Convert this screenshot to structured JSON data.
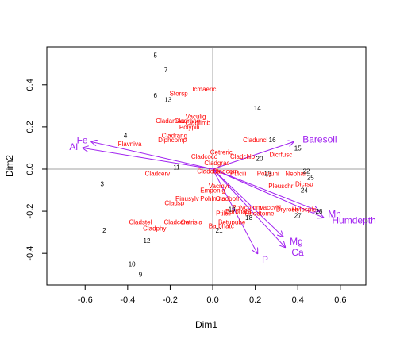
{
  "chart_data": {
    "type": "scatter",
    "xlabel": "Dim1",
    "ylabel": "Dim2",
    "xlim": [
      -0.78,
      0.72
    ],
    "ylim": [
      -0.55,
      0.58
    ],
    "x_ticks": [
      -0.6,
      -0.4,
      -0.2,
      0.0,
      0.2,
      0.4,
      0.6
    ],
    "x_tick_labels": [
      "-0.6",
      "-0.4",
      "-0.2",
      "0.0",
      "0.2",
      "0.4",
      "0.6"
    ],
    "y_ticks": [
      -0.4,
      -0.2,
      0.0,
      0.2,
      0.4
    ],
    "y_tick_labels": [
      "-0.4",
      "-0.2",
      "0.0",
      "0.2",
      "0.4"
    ],
    "reference_lines": {
      "x": 0,
      "y": 0
    },
    "colors": {
      "sites": "#000000",
      "species": "#ff0000",
      "env": "#a020f0"
    },
    "sites": [
      {
        "label": "5",
        "x": -0.27,
        "y": 0.54
      },
      {
        "label": "7",
        "x": -0.22,
        "y": 0.47
      },
      {
        "label": "6",
        "x": -0.27,
        "y": 0.35
      },
      {
        "label": "13",
        "x": -0.21,
        "y": 0.33
      },
      {
        "label": "14",
        "x": 0.21,
        "y": 0.29
      },
      {
        "label": "4",
        "x": -0.41,
        "y": 0.16
      },
      {
        "label": "16",
        "x": 0.28,
        "y": 0.14
      },
      {
        "label": "15",
        "x": 0.4,
        "y": 0.1
      },
      {
        "label": "20",
        "x": 0.22,
        "y": 0.05
      },
      {
        "label": "11",
        "x": -0.17,
        "y": 0.01
      },
      {
        "label": "22",
        "x": 0.44,
        "y": -0.01
      },
      {
        "label": "25",
        "x": 0.46,
        "y": -0.04
      },
      {
        "label": "23",
        "x": 0.26,
        "y": -0.02
      },
      {
        "label": "3",
        "x": -0.52,
        "y": -0.07
      },
      {
        "label": "24",
        "x": 0.43,
        "y": -0.1
      },
      {
        "label": "19",
        "x": 0.09,
        "y": -0.19
      },
      {
        "label": "28",
        "x": 0.5,
        "y": -0.2
      },
      {
        "label": "27",
        "x": 0.4,
        "y": -0.22
      },
      {
        "label": "18",
        "x": 0.17,
        "y": -0.23
      },
      {
        "label": "21",
        "x": 0.03,
        "y": -0.29
      },
      {
        "label": "2",
        "x": -0.51,
        "y": -0.29
      },
      {
        "label": "12",
        "x": -0.31,
        "y": -0.34
      },
      {
        "label": "10",
        "x": -0.38,
        "y": -0.45
      },
      {
        "label": "9",
        "x": -0.34,
        "y": -0.5
      }
    ],
    "species": [
      {
        "label": "Icmaeric",
        "x": -0.04,
        "y": 0.38
      },
      {
        "label": "Stersp",
        "x": -0.16,
        "y": 0.36
      },
      {
        "label": "Vaculig",
        "x": -0.08,
        "y": 0.25
      },
      {
        "label": "Cladamau",
        "x": -0.2,
        "y": 0.23
      },
      {
        "label": "Cladrang",
        "x": -0.12,
        "y": 0.23
      },
      {
        "label": "Cladfimb",
        "x": -0.07,
        "y": 0.22
      },
      {
        "label": "Polypili",
        "x": -0.11,
        "y": 0.2
      },
      {
        "label": "Cladrang",
        "x": -0.18,
        "y": 0.16
      },
      {
        "label": "Diphcomp",
        "x": -0.19,
        "y": 0.14
      },
      {
        "label": "Flavniva",
        "x": -0.39,
        "y": 0.12
      },
      {
        "label": "Cladunci",
        "x": 0.2,
        "y": 0.14
      },
      {
        "label": "Cetreric",
        "x": 0.04,
        "y": 0.08
      },
      {
        "label": "Dicrfusc",
        "x": 0.32,
        "y": 0.07
      },
      {
        "label": "Cladcocc",
        "x": -0.04,
        "y": 0.06
      },
      {
        "label": "Cladchlo",
        "x": 0.14,
        "y": 0.06
      },
      {
        "label": "Cladgrac",
        "x": 0.02,
        "y": 0.03
      },
      {
        "label": "Cladcerv",
        "x": -0.26,
        "y": -0.02
      },
      {
        "label": "Cladcris",
        "x": -0.02,
        "y": -0.01
      },
      {
        "label": "Cladcorn",
        "x": 0.06,
        "y": -0.01
      },
      {
        "label": "Ptilcili",
        "x": 0.12,
        "y": -0.02
      },
      {
        "label": "Polyjuni",
        "x": 0.26,
        "y": -0.02
      },
      {
        "label": "Nephar",
        "x": 0.39,
        "y": -0.02
      },
      {
        "label": "Pleuschr",
        "x": 0.32,
        "y": -0.08
      },
      {
        "label": "Dicrsp",
        "x": 0.43,
        "y": -0.07
      },
      {
        "label": "Vacmyr",
        "x": 0.03,
        "y": -0.08
      },
      {
        "label": "Empenig",
        "x": 0.0,
        "y": -0.1
      },
      {
        "label": "Pinusylv",
        "x": -0.12,
        "y": -0.14
      },
      {
        "label": "Pohlnuta",
        "x": 0.0,
        "y": -0.14
      },
      {
        "label": "Cladbotr",
        "x": 0.07,
        "y": -0.14
      },
      {
        "label": "Cladsp",
        "x": -0.18,
        "y": -0.16
      },
      {
        "label": "Polycomm",
        "x": 0.16,
        "y": -0.18
      },
      {
        "label": "Vaccviti",
        "x": 0.27,
        "y": -0.18
      },
      {
        "label": "Dryrosa",
        "x": 0.35,
        "y": -0.19
      },
      {
        "label": "Hylosple",
        "x": 0.43,
        "y": -0.19
      },
      {
        "label": "Ptilcil",
        "x": 0.05,
        "y": -0.21
      },
      {
        "label": "Barbhata",
        "x": 0.12,
        "y": -0.2
      },
      {
        "label": "Rhodtome",
        "x": 0.22,
        "y": -0.21
      },
      {
        "label": "Betupube",
        "x": 0.09,
        "y": -0.25
      },
      {
        "label": "Cladstel",
        "x": -0.34,
        "y": -0.25
      },
      {
        "label": "Cladcorn",
        "x": -0.17,
        "y": -0.25
      },
      {
        "label": "Cetrisla",
        "x": -0.1,
        "y": -0.25
      },
      {
        "label": "Cladphyl",
        "x": -0.27,
        "y": -0.28
      },
      {
        "label": "Barbhatc",
        "x": 0.04,
        "y": -0.27
      }
    ],
    "env_vectors": [
      {
        "label": "Baresoil",
        "x": 0.38,
        "y": 0.13
      },
      {
        "label": "Fe",
        "x": -0.57,
        "y": 0.13
      },
      {
        "label": "Al",
        "x": -0.61,
        "y": 0.1
      },
      {
        "label": "Mn",
        "x": 0.5,
        "y": -0.2
      },
      {
        "label": "Humdepth",
        "x": 0.52,
        "y": -0.23
      },
      {
        "label": "Mg",
        "x": 0.33,
        "y": -0.32
      },
      {
        "label": "Ca",
        "x": 0.34,
        "y": -0.37
      },
      {
        "label": "P",
        "x": 0.21,
        "y": -0.4
      }
    ]
  }
}
